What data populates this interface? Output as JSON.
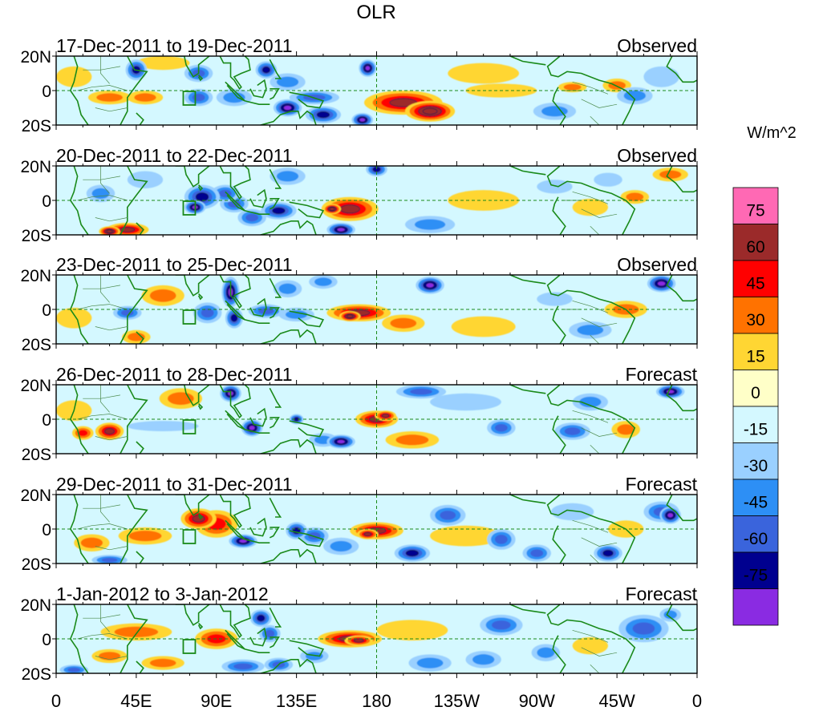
{
  "chart_data": {
    "type": "heatmap",
    "title": "OLR",
    "colorbar": {
      "units": "W/m^2",
      "ticks": [
        "75",
        "60",
        "45",
        "30",
        "15",
        "0",
        "-15",
        "-30",
        "-45",
        "-60",
        "-75"
      ],
      "colors": [
        "#ff69b4",
        "#9b2a2a",
        "#ff0000",
        "#ff7200",
        "#ffd633",
        "#ffffc8",
        "#d4f8ff",
        "#9ad0ff",
        "#2d8ff5",
        "#3a64dc",
        "#00008f",
        "#8a2be2"
      ]
    },
    "x_ticks": [
      "0",
      "45E",
      "90E",
      "135E",
      "180",
      "135W",
      "90W",
      "45W",
      "0"
    ],
    "y_ticks": [
      "20N",
      "0",
      "20S"
    ],
    "panels": [
      {
        "period": "17-Dec-2011 to 19-Dec-2011",
        "label": "Observed"
      },
      {
        "period": "20-Dec-2011 to 22-Dec-2011",
        "label": "Observed"
      },
      {
        "period": "23-Dec-2011 to 25-Dec-2011",
        "label": "Observed"
      },
      {
        "period": "26-Dec-2011 to 28-Dec-2011",
        "label": "Forecast"
      },
      {
        "period": "29-Dec-2011 to 31-Dec-2011",
        "label": "Forecast"
      },
      {
        "period": "1-Jan-2012 to 3-Jan-2012",
        "label": "Forecast"
      }
    ],
    "anomaly_blobs": [
      [
        [
          195,
          -7,
          22,
          7,
          60
        ],
        [
          210,
          -12,
          14,
          6,
          75
        ],
        [
          150,
          -14,
          10,
          5,
          -60
        ],
        [
          130,
          -10,
          8,
          5,
          -75
        ],
        [
          172,
          -17,
          6,
          4,
          -75
        ],
        [
          145,
          -4,
          14,
          4,
          -45
        ],
        [
          100,
          -4,
          10,
          5,
          -30
        ],
        [
          80,
          -4,
          8,
          5,
          -45
        ],
        [
          50,
          -4,
          10,
          4,
          30
        ],
        [
          30,
          -4,
          12,
          4,
          30
        ],
        [
          175,
          13,
          5,
          5,
          -75
        ],
        [
          118,
          12,
          6,
          5,
          -60
        ],
        [
          80,
          10,
          8,
          5,
          -45
        ],
        [
          45,
          12,
          6,
          6,
          -60
        ],
        [
          130,
          5,
          10,
          5,
          -30
        ],
        [
          290,
          2,
          8,
          3,
          30
        ],
        [
          315,
          3,
          8,
          4,
          30
        ],
        [
          325,
          -3,
          10,
          5,
          -30
        ],
        [
          280,
          -12,
          12,
          5,
          -30
        ],
        [
          250,
          0,
          20,
          4,
          15
        ],
        [
          10,
          8,
          10,
          6,
          15
        ],
        [
          340,
          8,
          10,
          6,
          -15
        ],
        [
          240,
          10,
          20,
          6,
          15
        ],
        [
          60,
          16,
          15,
          4,
          15
        ]
      ],
      [
        [
          165,
          -5,
          16,
          7,
          60
        ],
        [
          155,
          -5,
          5,
          3,
          75
        ],
        [
          125,
          -6,
          10,
          5,
          -60
        ],
        [
          110,
          -10,
          8,
          5,
          -45
        ],
        [
          82,
          2,
          10,
          7,
          -60
        ],
        [
          78,
          -4,
          6,
          4,
          -75
        ],
        [
          100,
          -2,
          8,
          5,
          -45
        ],
        [
          95,
          4,
          8,
          5,
          -45
        ],
        [
          40,
          -17,
          12,
          4,
          60
        ],
        [
          30,
          -18,
          6,
          3,
          75
        ],
        [
          25,
          4,
          8,
          5,
          -30
        ],
        [
          160,
          -17,
          8,
          4,
          -75
        ],
        [
          180,
          18,
          6,
          4,
          -60
        ],
        [
          130,
          14,
          10,
          5,
          -30
        ],
        [
          300,
          -4,
          10,
          5,
          15
        ],
        [
          325,
          2,
          8,
          4,
          30
        ],
        [
          345,
          15,
          10,
          4,
          30
        ],
        [
          280,
          8,
          10,
          4,
          -15
        ],
        [
          240,
          0,
          20,
          6,
          15
        ],
        [
          210,
          -14,
          14,
          5,
          -30
        ],
        [
          50,
          12,
          10,
          5,
          -15
        ],
        [
          310,
          12,
          8,
          4,
          -15
        ]
      ],
      [
        [
          170,
          -2,
          18,
          5,
          60
        ],
        [
          165,
          -4,
          6,
          3,
          75
        ],
        [
          195,
          -8,
          12,
          5,
          30
        ],
        [
          98,
          10,
          5,
          9,
          -75
        ],
        [
          100,
          -5,
          5,
          6,
          -60
        ],
        [
          85,
          -2,
          8,
          6,
          -45
        ],
        [
          118,
          -1,
          10,
          4,
          -45
        ],
        [
          135,
          -3,
          10,
          4,
          -30
        ],
        [
          210,
          14,
          8,
          5,
          -75
        ],
        [
          340,
          15,
          8,
          5,
          -75
        ],
        [
          60,
          8,
          12,
          6,
          30
        ],
        [
          40,
          -2,
          8,
          4,
          -45
        ],
        [
          45,
          -16,
          8,
          4,
          30
        ],
        [
          320,
          0,
          12,
          5,
          30
        ],
        [
          300,
          -12,
          12,
          5,
          -30
        ],
        [
          150,
          16,
          8,
          4,
          -30
        ],
        [
          240,
          -10,
          18,
          6,
          15
        ],
        [
          10,
          -5,
          10,
          6,
          15
        ],
        [
          130,
          12,
          8,
          5,
          -30
        ],
        [
          280,
          6,
          10,
          4,
          -15
        ]
      ],
      [
        [
          180,
          0,
          12,
          5,
          60
        ],
        [
          185,
          2,
          6,
          3,
          60
        ],
        [
          98,
          15,
          6,
          5,
          -75
        ],
        [
          110,
          -5,
          6,
          5,
          -75
        ],
        [
          160,
          -13,
          8,
          4,
          -75
        ],
        [
          135,
          0,
          4,
          3,
          -60
        ],
        [
          30,
          -7,
          8,
          5,
          60
        ],
        [
          15,
          -8,
          6,
          4,
          45
        ],
        [
          70,
          12,
          12,
          6,
          30
        ],
        [
          250,
          -5,
          8,
          5,
          -45
        ],
        [
          205,
          16,
          14,
          4,
          -45
        ],
        [
          345,
          16,
          8,
          4,
          -75
        ],
        [
          290,
          -7,
          10,
          5,
          -45
        ],
        [
          320,
          -6,
          8,
          5,
          30
        ],
        [
          60,
          -4,
          20,
          3,
          -15
        ],
        [
          150,
          -12,
          8,
          4,
          -30
        ],
        [
          230,
          10,
          20,
          5,
          -15
        ],
        [
          200,
          -12,
          15,
          5,
          30
        ],
        [
          300,
          10,
          10,
          5,
          -30
        ],
        [
          10,
          5,
          10,
          6,
          15
        ]
      ],
      [
        [
          180,
          -1,
          15,
          5,
          60
        ],
        [
          175,
          -3,
          6,
          3,
          60
        ],
        [
          80,
          6,
          10,
          6,
          60
        ],
        [
          90,
          3,
          12,
          8,
          45
        ],
        [
          105,
          -7,
          8,
          4,
          -75
        ],
        [
          135,
          -1,
          6,
          5,
          -60
        ],
        [
          145,
          -4,
          8,
          5,
          -45
        ],
        [
          160,
          -10,
          10,
          5,
          -30
        ],
        [
          200,
          -14,
          10,
          5,
          -60
        ],
        [
          220,
          8,
          10,
          6,
          -45
        ],
        [
          250,
          -6,
          8,
          6,
          -45
        ],
        [
          270,
          -14,
          8,
          5,
          -45
        ],
        [
          310,
          -14,
          8,
          5,
          -60
        ],
        [
          345,
          8,
          6,
          5,
          -75
        ],
        [
          340,
          10,
          10,
          6,
          -45
        ],
        [
          30,
          -18,
          10,
          3,
          -45
        ],
        [
          50,
          -4,
          15,
          5,
          30
        ],
        [
          20,
          -8,
          10,
          5,
          30
        ],
        [
          290,
          10,
          12,
          5,
          -15
        ],
        [
          230,
          -4,
          20,
          6,
          15
        ],
        [
          320,
          0,
          10,
          5,
          15
        ]
      ],
      [
        [
          165,
          0,
          18,
          5,
          60
        ],
        [
          170,
          -1,
          8,
          3,
          60
        ],
        [
          45,
          4,
          20,
          5,
          30
        ],
        [
          90,
          0,
          12,
          6,
          45
        ],
        [
          115,
          12,
          6,
          5,
          -60
        ],
        [
          120,
          3,
          6,
          5,
          -45
        ],
        [
          105,
          -16,
          12,
          4,
          -45
        ],
        [
          125,
          -15,
          8,
          4,
          -45
        ],
        [
          145,
          -10,
          8,
          4,
          -30
        ],
        [
          210,
          -14,
          12,
          5,
          -30
        ],
        [
          250,
          8,
          12,
          6,
          -45
        ],
        [
          240,
          -12,
          10,
          5,
          -30
        ],
        [
          275,
          -8,
          8,
          5,
          -30
        ],
        [
          330,
          6,
          14,
          8,
          -45
        ],
        [
          345,
          14,
          6,
          4,
          -30
        ],
        [
          30,
          -10,
          10,
          4,
          30
        ],
        [
          60,
          -14,
          12,
          4,
          30
        ],
        [
          10,
          -18,
          8,
          3,
          -45
        ],
        [
          200,
          5,
          20,
          6,
          15
        ],
        [
          300,
          -4,
          10,
          5,
          15
        ]
      ]
    ]
  }
}
